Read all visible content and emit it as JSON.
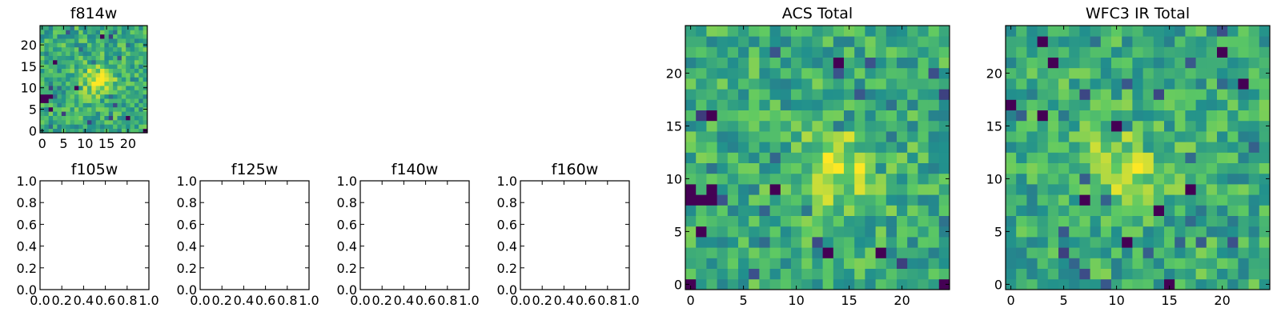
{
  "colors": {
    "colormap": [
      "#440154",
      "#3b528b",
      "#21908d",
      "#5dc963",
      "#fde725"
    ],
    "axis": "#000000",
    "background": "#ffffff"
  },
  "chart_data": [
    {
      "id": "f814w",
      "type": "heatmap",
      "title": "f814w",
      "grid_size": [
        25,
        25
      ],
      "xlim": [
        -0.5,
        24.5
      ],
      "ylim": [
        -0.5,
        24.5
      ],
      "xticks": [
        0,
        5,
        10,
        15,
        20
      ],
      "yticks": [
        0,
        5,
        10,
        15,
        20
      ],
      "xtick_labels": [
        "0",
        "5",
        "10",
        "15",
        "20"
      ],
      "ytick_labels": [
        "0",
        "5",
        "10",
        "15",
        "20"
      ],
      "center": [
        13,
        12
      ],
      "outliers": [
        [
          0,
          8
        ],
        [
          1,
          8
        ],
        [
          2,
          8
        ],
        [
          0,
          7
        ],
        [
          1,
          7
        ],
        [
          2,
          5
        ],
        [
          8,
          10
        ],
        [
          14,
          22
        ],
        [
          3,
          16
        ],
        [
          20,
          3
        ],
        [
          24,
          0
        ]
      ],
      "seed": 11
    },
    {
      "id": "f105w",
      "type": "heatmap",
      "title": "f105w",
      "empty": true,
      "xlim": [
        0,
        1
      ],
      "ylim": [
        0,
        1
      ],
      "xticks": [
        0,
        0.2,
        0.4,
        0.6,
        0.8,
        1.0
      ],
      "yticks": [
        0,
        0.2,
        0.4,
        0.6,
        0.8,
        1.0
      ],
      "xtick_labels": [
        "0.0",
        "0.2",
        "0.4",
        "0.6",
        "0.8",
        "1.0"
      ],
      "ytick_labels": [
        "0.0",
        "0.2",
        "0.4",
        "0.6",
        "0.8",
        "1.0"
      ]
    },
    {
      "id": "f125w",
      "type": "heatmap",
      "title": "f125w",
      "empty": true,
      "xlim": [
        0,
        1
      ],
      "ylim": [
        0,
        1
      ],
      "xticks": [
        0,
        0.2,
        0.4,
        0.6,
        0.8,
        1.0
      ],
      "yticks": [
        0,
        0.2,
        0.4,
        0.6,
        0.8,
        1.0
      ],
      "xtick_labels": [
        "0.0",
        "0.2",
        "0.4",
        "0.6",
        "0.8",
        "1.0"
      ],
      "ytick_labels": [
        "0.0",
        "0.2",
        "0.4",
        "0.6",
        "0.8",
        "1.0"
      ]
    },
    {
      "id": "f140w",
      "type": "heatmap",
      "title": "f140w",
      "empty": true,
      "xlim": [
        0,
        1
      ],
      "ylim": [
        0,
        1
      ],
      "xticks": [
        0,
        0.2,
        0.4,
        0.6,
        0.8,
        1.0
      ],
      "yticks": [
        0,
        0.2,
        0.4,
        0.6,
        0.8,
        1.0
      ],
      "xtick_labels": [
        "0.0",
        "0.2",
        "0.4",
        "0.6",
        "0.8",
        "1.0"
      ],
      "ytick_labels": [
        "0.0",
        "0.2",
        "0.4",
        "0.6",
        "0.8",
        "1.0"
      ]
    },
    {
      "id": "f160w",
      "type": "heatmap",
      "title": "f160w",
      "empty": true,
      "xlim": [
        0,
        1
      ],
      "ylim": [
        0,
        1
      ],
      "xticks": [
        0,
        0.2,
        0.4,
        0.6,
        0.8,
        1.0
      ],
      "yticks": [
        0,
        0.2,
        0.4,
        0.6,
        0.8,
        1.0
      ],
      "xtick_labels": [
        "0.0",
        "0.2",
        "0.4",
        "0.6",
        "0.8",
        "1.0"
      ],
      "ytick_labels": [
        "0.0",
        "0.2",
        "0.4",
        "0.6",
        "0.8",
        "1.0"
      ]
    },
    {
      "id": "acs_total",
      "type": "heatmap",
      "title": "ACS Total",
      "grid_size": [
        25,
        25
      ],
      "xlim": [
        -0.5,
        24.5
      ],
      "ylim": [
        -0.5,
        24.5
      ],
      "xticks": [
        0,
        5,
        10,
        15,
        20
      ],
      "yticks": [
        0,
        5,
        10,
        15,
        20
      ],
      "xtick_labels": [
        "0",
        "5",
        "10",
        "15",
        "20"
      ],
      "ytick_labels": [
        "0",
        "5",
        "10",
        "15",
        "20"
      ],
      "center": [
        14,
        11
      ],
      "outliers": [
        [
          0,
          8
        ],
        [
          1,
          8
        ],
        [
          2,
          8
        ],
        [
          0,
          9
        ],
        [
          2,
          9
        ],
        [
          2,
          16
        ],
        [
          1,
          5
        ],
        [
          8,
          9
        ],
        [
          14,
          21
        ],
        [
          0,
          0
        ],
        [
          24,
          0
        ],
        [
          13,
          3
        ],
        [
          18,
          3
        ]
      ],
      "seed": 7
    },
    {
      "id": "wfc3_ir_total",
      "type": "heatmap",
      "title": "WFC3 IR Total",
      "grid_size": [
        25,
        25
      ],
      "xlim": [
        -0.5,
        24.5
      ],
      "ylim": [
        -0.5,
        24.5
      ],
      "xticks": [
        0,
        5,
        10,
        15,
        20
      ],
      "yticks": [
        0,
        5,
        10,
        15,
        20
      ],
      "xtick_labels": [
        "0",
        "5",
        "10",
        "15",
        "20"
      ],
      "ytick_labels": [
        "0",
        "5",
        "10",
        "15",
        "20"
      ],
      "center": [
        11,
        11
      ],
      "outliers": [
        [
          3,
          23
        ],
        [
          4,
          21
        ],
        [
          0,
          17
        ],
        [
          10,
          15
        ],
        [
          7,
          8
        ],
        [
          17,
          9
        ],
        [
          15,
          0
        ],
        [
          14,
          7
        ],
        [
          20,
          22
        ],
        [
          22,
          19
        ],
        [
          3,
          16
        ],
        [
          11,
          4
        ]
      ],
      "seed": 23
    }
  ]
}
